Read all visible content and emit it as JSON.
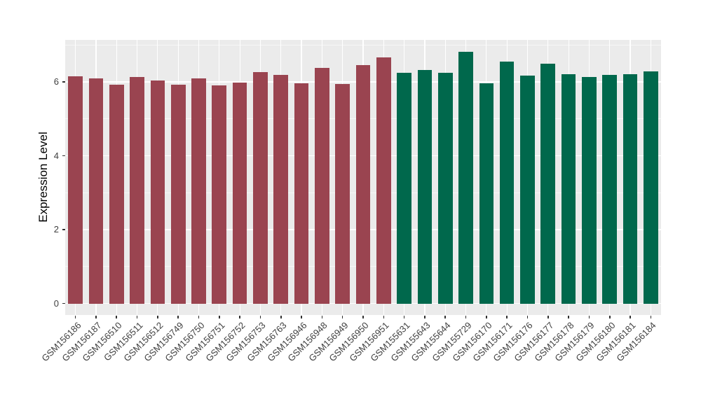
{
  "chart_data": {
    "type": "bar",
    "title": "",
    "xlabel": "",
    "ylabel": "Expression Level",
    "ylim": [
      -0.31,
      7.14
    ],
    "yticks": [
      0,
      2,
      4,
      6
    ],
    "yticks_minor": [
      1,
      3,
      5,
      7
    ],
    "grid": "on",
    "legend_position": "none",
    "panel_bg": "#EBEBEB",
    "grid_color": "#FFFFFF",
    "axis_text_color": "#404040",
    "tick_color": "#333333",
    "group_colors": [
      "#9A4450",
      "#00684C"
    ],
    "categories": [
      "GSM156186",
      "GSM156187",
      "GSM156510",
      "GSM156511",
      "GSM156512",
      "GSM156749",
      "GSM156750",
      "GSM156751",
      "GSM156752",
      "GSM156753",
      "GSM156763",
      "GSM156946",
      "GSM156948",
      "GSM156949",
      "GSM156950",
      "GSM156951",
      "GSM155631",
      "GSM155643",
      "GSM155644",
      "GSM155729",
      "GSM156170",
      "GSM156171",
      "GSM156176",
      "GSM156177",
      "GSM156178",
      "GSM156179",
      "GSM156180",
      "GSM156181",
      "GSM156184"
    ],
    "values": [
      6.16,
      6.09,
      5.93,
      6.14,
      6.04,
      5.93,
      6.09,
      5.9,
      5.99,
      6.26,
      6.19,
      5.97,
      6.38,
      5.94,
      6.46,
      6.66,
      6.25,
      6.32,
      6.25,
      6.82,
      5.96,
      6.55,
      6.18,
      6.5,
      6.2,
      6.14,
      6.19,
      6.21,
      6.29
    ],
    "bar_groups": [
      0,
      0,
      0,
      0,
      0,
      0,
      0,
      0,
      0,
      0,
      0,
      0,
      0,
      0,
      0,
      0,
      1,
      1,
      1,
      1,
      1,
      1,
      1,
      1,
      1,
      1,
      1,
      1,
      1
    ]
  }
}
